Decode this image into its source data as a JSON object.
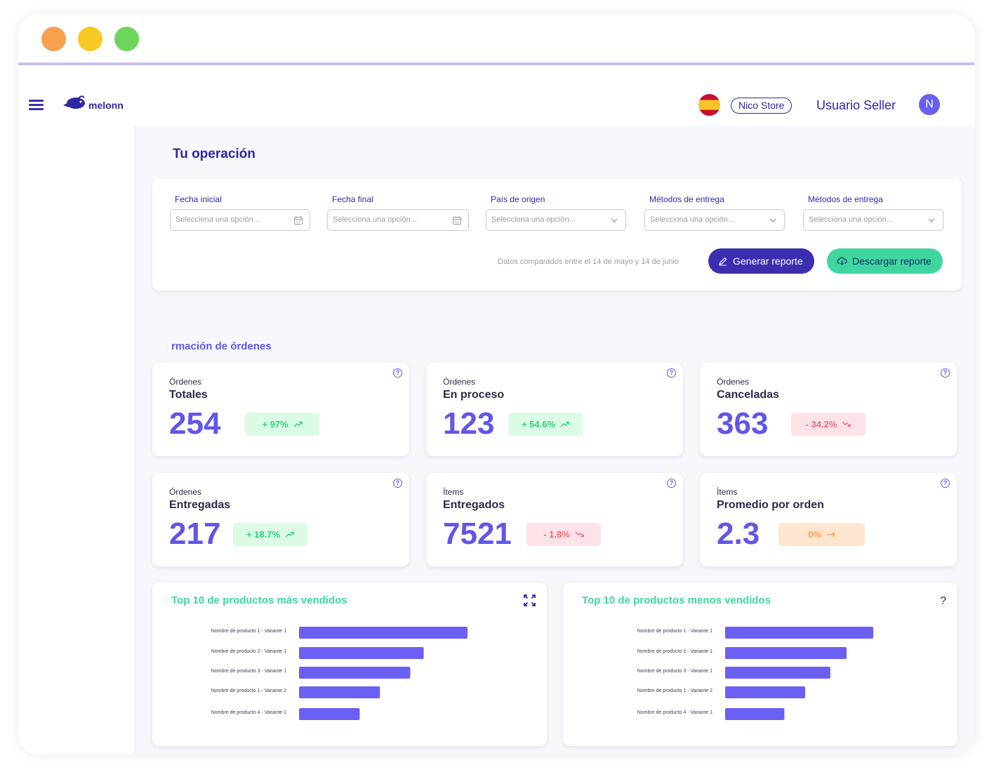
{
  "header": {
    "brand": "melonn",
    "store": "Nico Store",
    "user": "Usuario Seller",
    "avatar_initial": "N"
  },
  "page": {
    "title": "Tu operación"
  },
  "filters": {
    "items": [
      {
        "label": "Fecha inicial",
        "placeholder": "Selecciona una opción...",
        "icon": "calendar-icon"
      },
      {
        "label": "Fecha final",
        "placeholder": "Selecciona una opción...",
        "icon": "calendar-icon"
      },
      {
        "label": "País de origen",
        "placeholder": "Selecciona una opción...",
        "icon": "chevron-down-icon"
      },
      {
        "label": "Métodos de entrega",
        "placeholder": "Selecciona una opción...",
        "icon": "chevron-down-icon"
      },
      {
        "label": "Métodos de entrega",
        "placeholder": "Selecciona una opción...",
        "icon": "chevron-down-icon"
      }
    ],
    "compare_note": "Datos comparados entre el 14 de mayo y 14 de junio",
    "generate_label": "Generar reporte",
    "download_label": "Descargar reporte"
  },
  "section": {
    "title": "rmación de órdenes"
  },
  "cards": [
    {
      "kicker": "Órdenes",
      "name": "Totales",
      "value": "254",
      "change": "+ 97%",
      "trend": "up"
    },
    {
      "kicker": "Órdenes",
      "name": "En proceso",
      "value": "123",
      "change": "+ 54.6%",
      "trend": "up"
    },
    {
      "kicker": "Órdenes",
      "name": "Canceladas",
      "value": "363",
      "change": "- 34.2%",
      "trend": "down"
    },
    {
      "kicker": "Órdenes",
      "name": "Entregadas",
      "value": "217",
      "change": "+ 18.7%",
      "trend": "up"
    },
    {
      "kicker": "Ítems",
      "name": "Entregados",
      "value": "7521",
      "change": "- 1.8%",
      "trend": "down"
    },
    {
      "kicker": "Ítems",
      "name": "Promedio por orden",
      "value": "2.3",
      "change": "0%",
      "trend": "neutral"
    }
  ],
  "colors": {
    "accent": "#6156e8",
    "brand": "#2f27a5",
    "bar": "#6a5ff2",
    "chart_title": "#3fd6a0"
  },
  "chart_data": [
    {
      "type": "bar",
      "title": "Top 10 de productos más vendidos",
      "categories": [
        "Nombre de producto 1 - Variante 1",
        "Nombre de producto 2 - Variante 1",
        "Nombre de producto 3 - Variante 1",
        "Nombre de producto 1 - Variante 2",
        "Nombre de producto 4 - Variante 1"
      ],
      "values": [
        100,
        74,
        66,
        48,
        36
      ],
      "orientation": "horizontal"
    },
    {
      "type": "bar",
      "title": "Top 10 de productos menos vendidos",
      "categories": [
        "Nombre de producto 1 - Variante 1",
        "Nombre de producto 2 - Variante 1",
        "Nombre de producto 3 - Variante 1",
        "Nombre de producto 1 - Variante 2",
        "Nombre de producto 4 - Variante 1"
      ],
      "values": [
        100,
        82,
        71,
        54,
        40
      ],
      "orientation": "horizontal"
    }
  ]
}
